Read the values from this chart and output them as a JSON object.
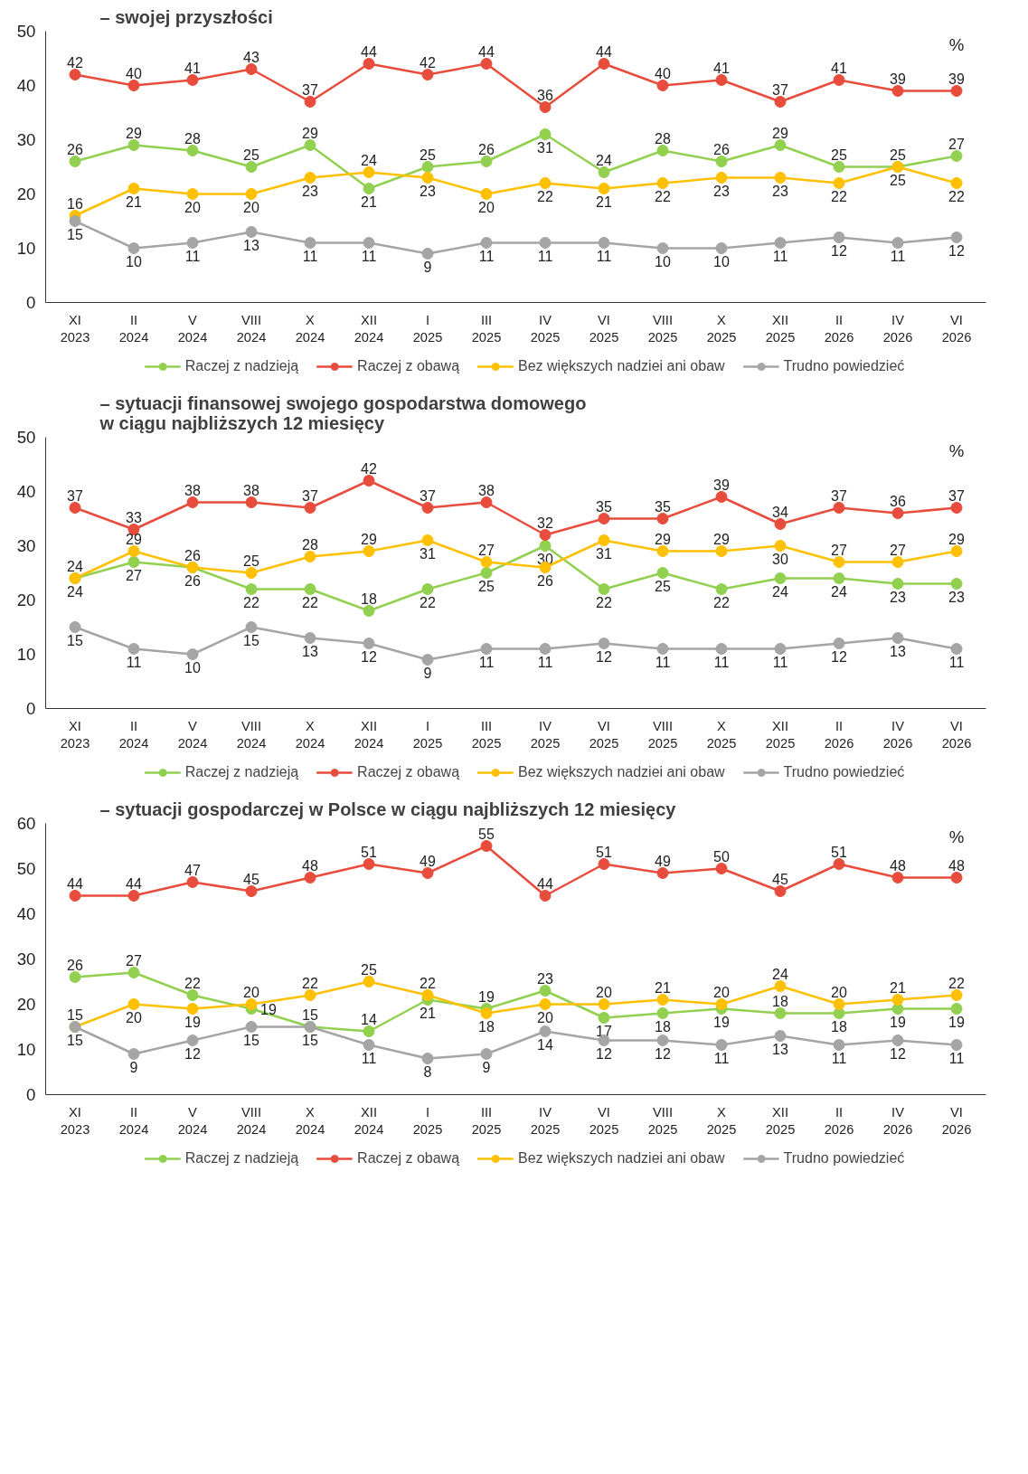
{
  "chart_data": [
    {
      "type": "line",
      "title": "– swojej przyszłości",
      "categories": [
        "XI\n2023",
        "II\n2024",
        "V\n2024",
        "VIII\n2024",
        "X\n2024",
        "XII\n2024",
        "I\n2025",
        "III\n2025",
        "IV\n2025",
        "VI\n2025",
        "VIII\n2025",
        "X\n2025",
        "XII\n2025",
        "II\n2026",
        "IV\n2026",
        "VI\n2026"
      ],
      "ylim": [
        0,
        50
      ],
      "yticks": [
        0,
        10,
        20,
        30,
        40,
        50
      ],
      "annotations": [
        "%"
      ],
      "data_labels": true,
      "grid": false,
      "legend": "bottom",
      "marker": "circle",
      "line_style": "solid",
      "series": [
        {
          "name": "Raczej z nadzieją",
          "color": "#92d050",
          "values": [
            26,
            29,
            28,
            25,
            29,
            21,
            25,
            26,
            31,
            24,
            28,
            26,
            29,
            25,
            25,
            27
          ]
        },
        {
          "name": "Raczej z obawą",
          "color": "#e84c3d",
          "values": [
            42,
            40,
            41,
            43,
            37,
            44,
            42,
            44,
            36,
            44,
            40,
            41,
            37,
            41,
            39,
            39
          ]
        },
        {
          "name": "Bez większych nadziei ani obaw",
          "color": "#ffc000",
          "values": [
            16,
            21,
            20,
            20,
            23,
            24,
            23,
            20,
            22,
            21,
            22,
            23,
            23,
            22,
            25,
            22
          ]
        },
        {
          "name": "Trudno powiedzieć",
          "color": "#a5a5a5",
          "values": [
            15,
            10,
            11,
            13,
            11,
            11,
            9,
            11,
            11,
            11,
            10,
            10,
            11,
            12,
            11,
            12
          ]
        }
      ]
    },
    {
      "type": "line",
      "title": "– sytuacji finansowej swojego gospodarstwa domowego\nw ciągu najbliższych 12 miesięcy",
      "categories": [
        "XI\n2023",
        "II\n2024",
        "V\n2024",
        "VIII\n2024",
        "X\n2024",
        "XII\n2024",
        "I\n2025",
        "III\n2025",
        "IV\n2025",
        "VI\n2025",
        "VIII\n2025",
        "X\n2025",
        "XII\n2025",
        "II\n2026",
        "IV\n2026",
        "VI\n2026"
      ],
      "ylim": [
        0,
        50
      ],
      "yticks": [
        0,
        10,
        20,
        30,
        40,
        50
      ],
      "annotations": [
        "%"
      ],
      "data_labels": true,
      "grid": false,
      "legend": "bottom",
      "marker": "circle",
      "line_style": "solid",
      "series": [
        {
          "name": "Raczej z nadzieją",
          "color": "#92d050",
          "values": [
            24,
            27,
            26,
            22,
            22,
            18,
            22,
            25,
            30,
            22,
            25,
            22,
            24,
            24,
            23,
            23
          ]
        },
        {
          "name": "Raczej z obawą",
          "color": "#e84c3d",
          "values": [
            37,
            33,
            38,
            38,
            37,
            42,
            37,
            38,
            32,
            35,
            35,
            39,
            34,
            37,
            36,
            37
          ]
        },
        {
          "name": "Bez większych nadziei ani obaw",
          "color": "#ffc000",
          "values": [
            24,
            29,
            26,
            25,
            28,
            29,
            31,
            27,
            26,
            31,
            29,
            29,
            30,
            27,
            27,
            29
          ]
        },
        {
          "name": "Trudno powiedzieć",
          "color": "#a5a5a5",
          "values": [
            15,
            11,
            10,
            15,
            13,
            12,
            9,
            11,
            11,
            12,
            11,
            11,
            11,
            12,
            13,
            11
          ]
        }
      ]
    },
    {
      "type": "line",
      "title": "– sytuacji gospodarczej w Polsce w ciągu najbliższych 12 miesięcy",
      "categories": [
        "XI\n2023",
        "II\n2024",
        "V\n2024",
        "VIII\n2024",
        "X\n2024",
        "XII\n2024",
        "I\n2025",
        "III\n2025",
        "IV\n2025",
        "VI\n2025",
        "VIII\n2025",
        "X\n2025",
        "XII\n2025",
        "II\n2026",
        "IV\n2026",
        "VI\n2026"
      ],
      "ylim": [
        0,
        60
      ],
      "yticks": [
        0,
        10,
        20,
        30,
        40,
        50,
        60
      ],
      "annotations": [
        "%"
      ],
      "data_labels": true,
      "grid": false,
      "legend": "bottom",
      "marker": "circle",
      "line_style": "solid",
      "series": [
        {
          "name": "Raczej z nadzieją",
          "color": "#92d050",
          "values": [
            26,
            27,
            22,
            19,
            15,
            14,
            21,
            19,
            23,
            17,
            18,
            19,
            18,
            18,
            19,
            19
          ]
        },
        {
          "name": "Raczej z obawą",
          "color": "#e84c3d",
          "values": [
            44,
            44,
            47,
            45,
            48,
            51,
            49,
            55,
            44,
            51,
            49,
            50,
            45,
            51,
            48,
            48
          ]
        },
        {
          "name": "Bez większych nadziei ani obaw",
          "color": "#ffc000",
          "values": [
            15,
            20,
            19,
            20,
            22,
            25,
            22,
            18,
            20,
            20,
            21,
            20,
            24,
            20,
            21,
            22
          ]
        },
        {
          "name": "Trudno powiedzieć",
          "color": "#a5a5a5",
          "values": [
            15,
            9,
            12,
            15,
            15,
            11,
            8,
            9,
            14,
            12,
            12,
            11,
            13,
            11,
            12,
            11
          ]
        }
      ]
    }
  ]
}
